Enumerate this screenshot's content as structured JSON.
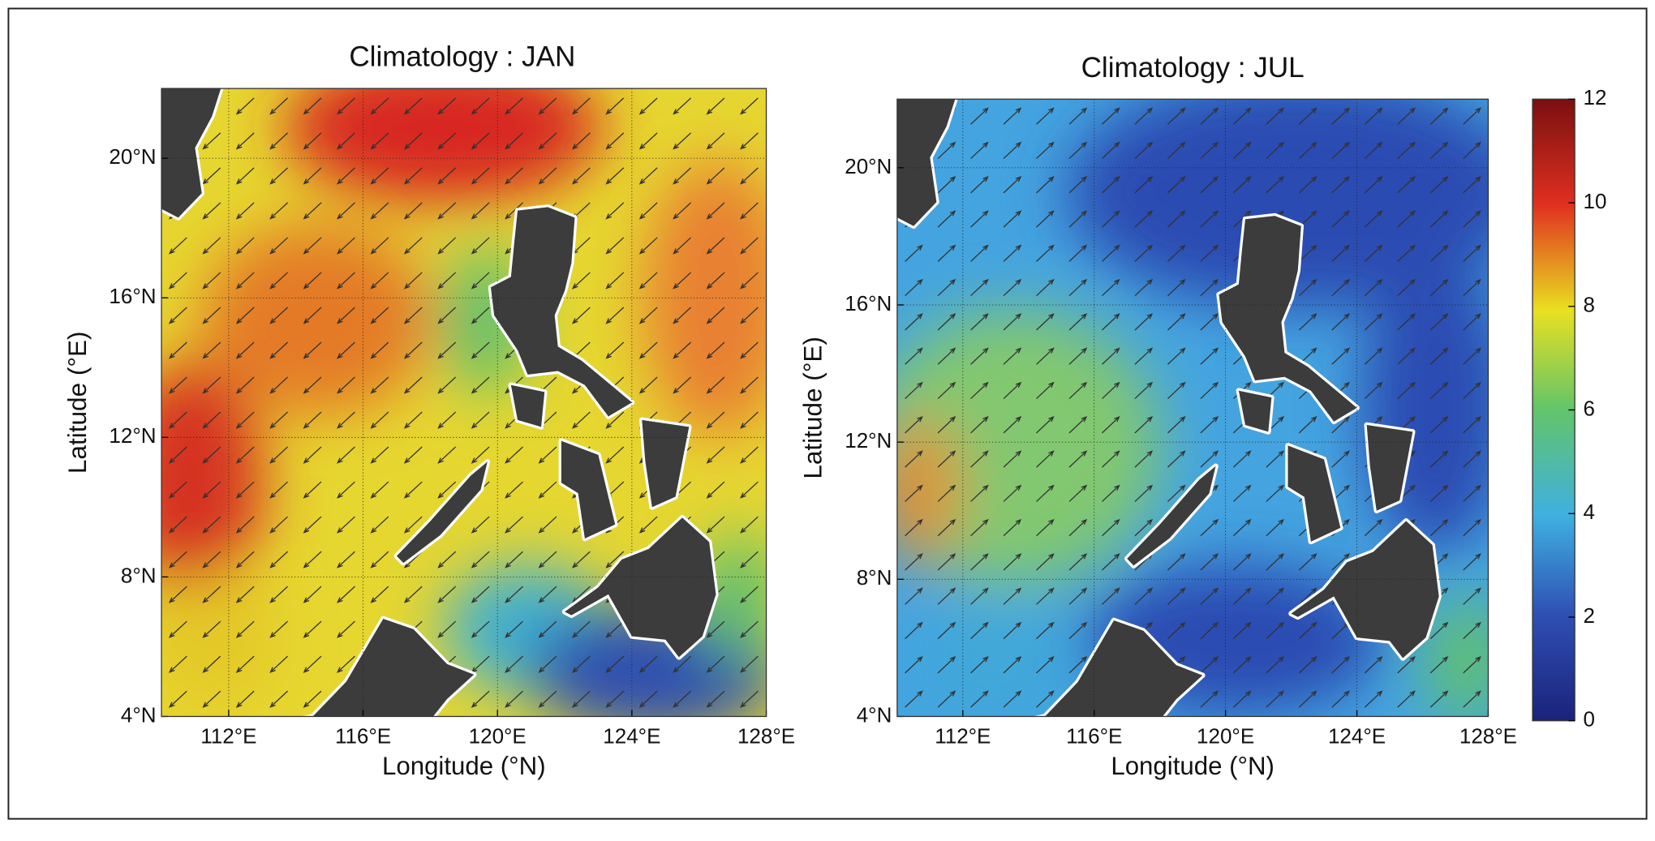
{
  "panels": [
    {
      "title": "Climatology : JAN",
      "x_label": "Longitude (°N)",
      "y_label": "Latitude (°E)",
      "xlim": [
        110,
        128
      ],
      "ylim": [
        4,
        22
      ],
      "xticks": [
        {
          "value": 112,
          "label": "112°E"
        },
        {
          "value": 116,
          "label": "116°E"
        },
        {
          "value": 120,
          "label": "120°E"
        },
        {
          "value": 124,
          "label": "124°E"
        },
        {
          "value": 128,
          "label": "128°E"
        }
      ],
      "yticks": [
        {
          "value": 4,
          "label": "4°N"
        },
        {
          "value": 8,
          "label": "8°N"
        },
        {
          "value": 12,
          "label": "12°N"
        },
        {
          "value": 16,
          "label": "16°N"
        },
        {
          "value": 20,
          "label": "20°N"
        }
      ]
    },
    {
      "title": "Climatology : JUL",
      "x_label": "Longitude (°N)",
      "y_label": "Latitude (°E)",
      "xlim": [
        110,
        128
      ],
      "ylim": [
        4,
        22
      ],
      "xticks": [
        {
          "value": 112,
          "label": "112°E"
        },
        {
          "value": 116,
          "label": "116°E"
        },
        {
          "value": 120,
          "label": "120°E"
        },
        {
          "value": 124,
          "label": "124°E"
        },
        {
          "value": 128,
          "label": "128°E"
        }
      ],
      "yticks": [
        {
          "value": 4,
          "label": "4°N"
        },
        {
          "value": 8,
          "label": "8°N"
        },
        {
          "value": 12,
          "label": "12°N"
        },
        {
          "value": 16,
          "label": "16°N"
        },
        {
          "value": 20,
          "label": "20°N"
        }
      ]
    }
  ],
  "colorbar": {
    "range": [
      0,
      12
    ],
    "ticks": [
      0,
      2,
      4,
      6,
      8,
      10,
      12
    ]
  }
}
